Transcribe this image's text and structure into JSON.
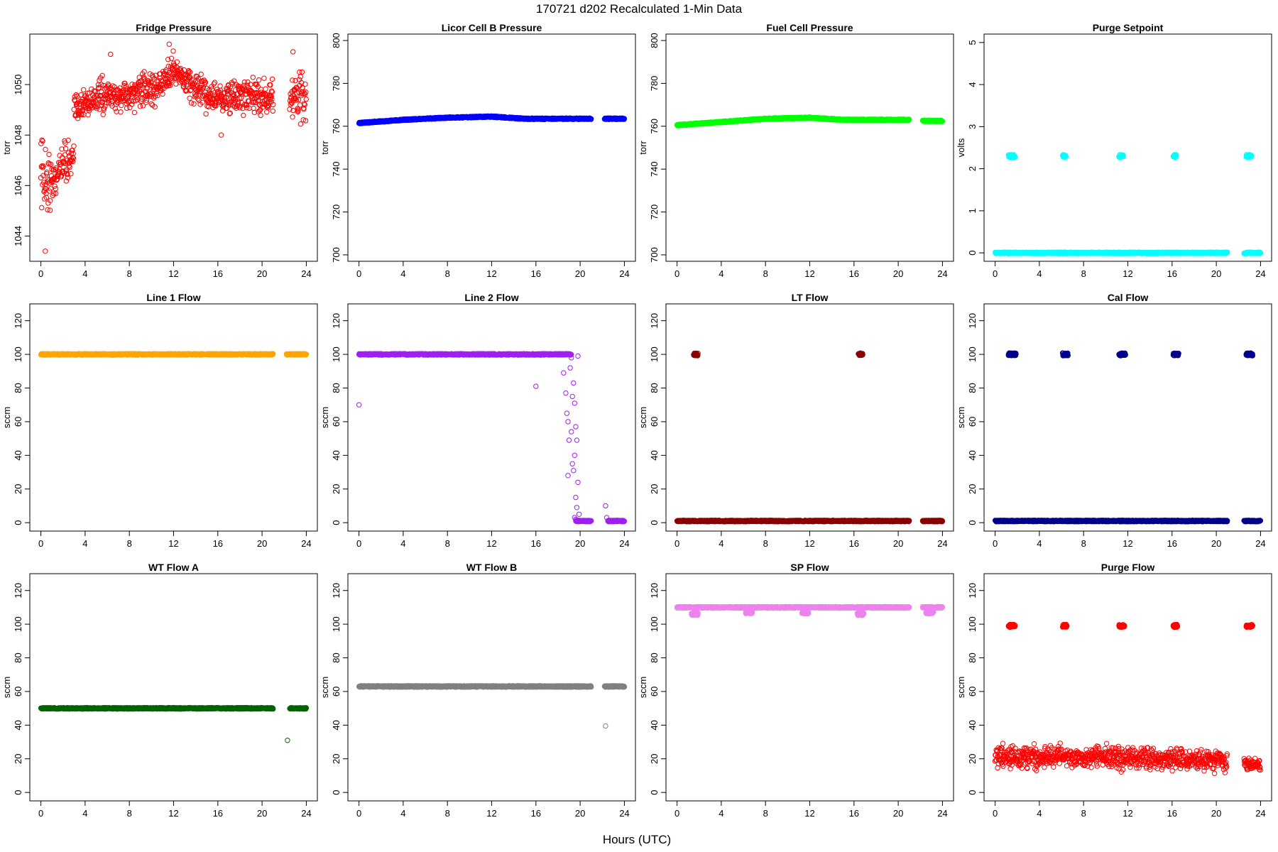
{
  "figure": {
    "title": "170721   d202   Recalculated 1-Min Data",
    "xlabel": "Hours (UTC)"
  },
  "chart_data": [
    {
      "type": "scatter",
      "title": "Fridge Pressure",
      "ylabel": "torr",
      "color": "#ff0000",
      "xlim": [
        -1,
        25
      ],
      "ylim": [
        1043,
        1052
      ],
      "xticks": [
        0,
        4,
        8,
        12,
        16,
        20,
        24
      ],
      "yticks": [
        1044,
        1046,
        1048,
        1050
      ],
      "series": [
        {
          "pattern": "noisy",
          "x_range": [
            0,
            1
          ],
          "knots": [
            [
              0,
              1046.5
            ],
            [
              1,
              1046.0
            ]
          ],
          "noise": 1.2
        },
        {
          "pattern": "noisy",
          "x_range": [
            1,
            3
          ],
          "knots": [
            [
              1,
              1046.0
            ],
            [
              2,
              1047.0
            ],
            [
              3,
              1047.0
            ]
          ],
          "noise": 0.7
        },
        {
          "pattern": "noisy",
          "x_range": [
            3,
            21
          ],
          "knots": [
            [
              3,
              1049.0
            ],
            [
              5,
              1049.5
            ],
            [
              8,
              1049.6
            ],
            [
              11,
              1050.0
            ],
            [
              12,
              1050.6
            ],
            [
              14,
              1049.8
            ],
            [
              16,
              1049.4
            ],
            [
              18,
              1049.5
            ],
            [
              21,
              1049.5
            ]
          ],
          "noise": 0.55
        },
        {
          "pattern": "noisy",
          "x_range": [
            22.5,
            24
          ],
          "knots": [
            [
              22.5,
              1049.6
            ],
            [
              24,
              1049.5
            ]
          ],
          "noise": 0.8
        },
        {
          "pattern": "points",
          "x": [
            0.4,
            0.1,
            11.6,
            11.5,
            6.3,
            16.3,
            22.8
          ],
          "y": [
            1043.4,
            1047.8,
            1051.6,
            1051.0,
            1051.2,
            1048.0,
            1051.3
          ]
        }
      ]
    },
    {
      "type": "scatter",
      "title": "Licor Cell B Pressure",
      "ylabel": "torr",
      "color": "#0000ff",
      "xlim": [
        -1,
        25
      ],
      "ylim": [
        697,
        803
      ],
      "xticks": [
        0,
        4,
        8,
        12,
        16,
        20,
        24
      ],
      "yticks": [
        700,
        720,
        740,
        760,
        780,
        800
      ],
      "series": [
        {
          "pattern": "band",
          "x_range": [
            0,
            21
          ],
          "knots": [
            [
              0,
              761.5
            ],
            [
              4,
              763
            ],
            [
              8,
              764
            ],
            [
              12,
              764.5
            ],
            [
              15,
              763.5
            ],
            [
              21,
              763.5
            ]
          ]
        },
        {
          "pattern": "band",
          "x_range": [
            22.2,
            24
          ],
          "knots": [
            [
              22.2,
              763.5
            ],
            [
              24,
              763.5
            ]
          ]
        }
      ]
    },
    {
      "type": "scatter",
      "title": "Fuel Cell Pressure",
      "ylabel": "torr",
      "color": "#00ff00",
      "xlim": [
        -1,
        25
      ],
      "ylim": [
        697,
        803
      ],
      "xticks": [
        0,
        4,
        8,
        12,
        16,
        20,
        24
      ],
      "yticks": [
        700,
        720,
        740,
        760,
        780,
        800
      ],
      "series": [
        {
          "pattern": "band",
          "x_range": [
            0,
            21
          ],
          "knots": [
            [
              0,
              760.5
            ],
            [
              4,
              762
            ],
            [
              8,
              763.5
            ],
            [
              12,
              764
            ],
            [
              15,
              763
            ],
            [
              21,
              763
            ]
          ]
        },
        {
          "pattern": "band",
          "x_range": [
            22.2,
            24
          ],
          "knots": [
            [
              22.2,
              762.5
            ],
            [
              24,
              762.5
            ]
          ]
        }
      ]
    },
    {
      "type": "scatter",
      "title": "Purge Setpoint",
      "ylabel": "volts",
      "color": "#00ffff",
      "xlim": [
        -1,
        25
      ],
      "ylim": [
        -0.2,
        5.2
      ],
      "xticks": [
        0,
        4,
        8,
        12,
        16,
        20,
        24
      ],
      "yticks": [
        0,
        1,
        2,
        3,
        4,
        5
      ],
      "series": [
        {
          "pattern": "band",
          "x_range": [
            0,
            21
          ],
          "knots": [
            [
              0,
              0
            ],
            [
              21,
              0
            ]
          ]
        },
        {
          "pattern": "band",
          "x_range": [
            22.5,
            24
          ],
          "knots": [
            [
              22.5,
              0
            ],
            [
              24,
              0
            ]
          ]
        },
        {
          "pattern": "cluster",
          "x_range": [
            1.2,
            1.8
          ],
          "y": 2.3
        },
        {
          "pattern": "cluster",
          "x_range": [
            6.1,
            6.4
          ],
          "y": 2.3
        },
        {
          "pattern": "cluster",
          "x_range": [
            11.2,
            11.6
          ],
          "y": 2.3
        },
        {
          "pattern": "cluster",
          "x_range": [
            16.1,
            16.4
          ],
          "y": 2.3
        },
        {
          "pattern": "cluster",
          "x_range": [
            22.7,
            23.2
          ],
          "y": 2.3
        }
      ]
    },
    {
      "type": "scatter",
      "title": "Line 1 Flow",
      "ylabel": "sccm",
      "color": "#ffa500",
      "xlim": [
        -1,
        25
      ],
      "ylim": [
        -5,
        130
      ],
      "xticks": [
        0,
        4,
        8,
        12,
        16,
        20,
        24
      ],
      "yticks": [
        0,
        20,
        40,
        60,
        80,
        100,
        120
      ],
      "series": [
        {
          "pattern": "band",
          "x_range": [
            0,
            21
          ],
          "knots": [
            [
              0,
              100
            ],
            [
              21,
              100
            ]
          ]
        },
        {
          "pattern": "band",
          "x_range": [
            22.2,
            24
          ],
          "knots": [
            [
              22.2,
              100
            ],
            [
              24,
              100
            ]
          ]
        }
      ]
    },
    {
      "type": "scatter",
      "title": "Line 2 Flow",
      "ylabel": "sccm",
      "color": "#a020f0",
      "xlim": [
        -1,
        25
      ],
      "ylim": [
        -5,
        130
      ],
      "xticks": [
        0,
        4,
        8,
        12,
        16,
        20,
        24
      ],
      "yticks": [
        0,
        20,
        40,
        60,
        80,
        100,
        120
      ],
      "series": [
        {
          "pattern": "band",
          "x_range": [
            0,
            19.2
          ],
          "knots": [
            [
              0,
              100
            ],
            [
              19.2,
              100
            ]
          ]
        },
        {
          "pattern": "band",
          "x_range": [
            19.6,
            21
          ],
          "knots": [
            [
              19.6,
              1
            ],
            [
              21,
              1
            ]
          ]
        },
        {
          "pattern": "band",
          "x_range": [
            22.5,
            24
          ],
          "knots": [
            [
              22.5,
              1
            ],
            [
              24,
              1
            ]
          ]
        },
        {
          "pattern": "points",
          "x": [
            0,
            16,
            18.5,
            18.7,
            18.8,
            18.9,
            19.0,
            19.1,
            19.2,
            18.9,
            19.4,
            19.3,
            19.5,
            19.6,
            19.7,
            19.5,
            19.3,
            19.8,
            19.6,
            19.4,
            19.7,
            19.9,
            19.5,
            19.6,
            19.2,
            19.8,
            22.3,
            22.4
          ],
          "y": [
            70,
            81,
            89,
            77,
            65,
            60,
            49,
            92,
            98,
            28,
            83,
            75,
            71,
            57,
            49,
            40,
            35,
            24,
            15,
            31,
            9,
            5,
            3,
            2,
            54,
            99,
            10,
            3
          ]
        }
      ]
    },
    {
      "type": "scatter",
      "title": "LT Flow",
      "ylabel": "sccm",
      "color": "#8b0000",
      "xlim": [
        -1,
        25
      ],
      "ylim": [
        -5,
        130
      ],
      "xticks": [
        0,
        4,
        8,
        12,
        16,
        20,
        24
      ],
      "yticks": [
        0,
        20,
        40,
        60,
        80,
        100,
        120
      ],
      "series": [
        {
          "pattern": "band",
          "x_range": [
            0,
            21
          ],
          "knots": [
            [
              0,
              1
            ],
            [
              21,
              1
            ]
          ]
        },
        {
          "pattern": "band",
          "x_range": [
            22.2,
            24
          ],
          "knots": [
            [
              22.2,
              1
            ],
            [
              24,
              1
            ]
          ]
        },
        {
          "pattern": "cluster",
          "x_range": [
            1.5,
            1.9
          ],
          "y": 100
        },
        {
          "pattern": "cluster",
          "x_range": [
            16.4,
            16.8
          ],
          "y": 100
        }
      ]
    },
    {
      "type": "scatter",
      "title": "Cal Flow",
      "ylabel": "sccm",
      "color": "#00008b",
      "xlim": [
        -1,
        25
      ],
      "ylim": [
        -5,
        130
      ],
      "xticks": [
        0,
        4,
        8,
        12,
        16,
        20,
        24
      ],
      "yticks": [
        0,
        20,
        40,
        60,
        80,
        100,
        120
      ],
      "series": [
        {
          "pattern": "band",
          "x_range": [
            0,
            21
          ],
          "knots": [
            [
              0,
              1
            ],
            [
              21,
              1
            ]
          ]
        },
        {
          "pattern": "band",
          "x_range": [
            22.5,
            24
          ],
          "knots": [
            [
              22.5,
              1
            ],
            [
              24,
              1
            ]
          ]
        },
        {
          "pattern": "cluster",
          "x_range": [
            1.2,
            1.9
          ],
          "y": 100
        },
        {
          "pattern": "cluster",
          "x_range": [
            6.1,
            6.6
          ],
          "y": 100
        },
        {
          "pattern": "cluster",
          "x_range": [
            11.2,
            11.8
          ],
          "y": 100
        },
        {
          "pattern": "cluster",
          "x_range": [
            16.1,
            16.6
          ],
          "y": 100
        },
        {
          "pattern": "cluster",
          "x_range": [
            22.7,
            23.3
          ],
          "y": 100
        }
      ]
    },
    {
      "type": "scatter",
      "title": "WT Flow A",
      "ylabel": "sccm",
      "color": "#006400",
      "xlim": [
        -1,
        25
      ],
      "ylim": [
        -5,
        130
      ],
      "xticks": [
        0,
        4,
        8,
        12,
        16,
        20,
        24
      ],
      "yticks": [
        0,
        20,
        40,
        60,
        80,
        100,
        120
      ],
      "series": [
        {
          "pattern": "band",
          "x_range": [
            0,
            21
          ],
          "knots": [
            [
              0,
              50
            ],
            [
              21,
              50
            ]
          ]
        },
        {
          "pattern": "band",
          "x_range": [
            22.5,
            24
          ],
          "knots": [
            [
              22.5,
              50
            ],
            [
              24,
              50
            ]
          ]
        },
        {
          "pattern": "points",
          "x": [
            22.3
          ],
          "y": [
            31
          ]
        }
      ]
    },
    {
      "type": "scatter",
      "title": "WT Flow B",
      "ylabel": "sccm",
      "color": "#808080",
      "xlim": [
        -1,
        25
      ],
      "ylim": [
        -5,
        130
      ],
      "xticks": [
        0,
        4,
        8,
        12,
        16,
        20,
        24
      ],
      "yticks": [
        0,
        20,
        40,
        60,
        80,
        100,
        120
      ],
      "series": [
        {
          "pattern": "band",
          "x_range": [
            0,
            21
          ],
          "knots": [
            [
              0,
              63
            ],
            [
              21,
              63
            ]
          ]
        },
        {
          "pattern": "band",
          "x_range": [
            22.2,
            24
          ],
          "knots": [
            [
              22.2,
              63
            ],
            [
              24,
              63
            ]
          ]
        },
        {
          "pattern": "points",
          "x": [
            22.3
          ],
          "y": [
            39.5
          ]
        }
      ]
    },
    {
      "type": "scatter",
      "title": "SP Flow",
      "ylabel": "sccm",
      "color": "#ee82ee",
      "xlim": [
        -1,
        25
      ],
      "ylim": [
        -5,
        130
      ],
      "xticks": [
        0,
        4,
        8,
        12,
        16,
        20,
        24
      ],
      "yticks": [
        0,
        20,
        40,
        60,
        80,
        100,
        120
      ],
      "series": [
        {
          "pattern": "band",
          "x_range": [
            0,
            21
          ],
          "knots": [
            [
              0,
              110
            ],
            [
              21,
              110
            ]
          ]
        },
        {
          "pattern": "band",
          "x_range": [
            22.2,
            24
          ],
          "knots": [
            [
              22.2,
              110
            ],
            [
              24,
              110
            ]
          ]
        },
        {
          "pattern": "cluster",
          "x_range": [
            1.3,
            1.9
          ],
          "y": 106
        },
        {
          "pattern": "cluster",
          "x_range": [
            6.2,
            6.8
          ],
          "y": 107
        },
        {
          "pattern": "cluster",
          "x_range": [
            11.3,
            11.9
          ],
          "y": 107
        },
        {
          "pattern": "cluster",
          "x_range": [
            16.3,
            16.9
          ],
          "y": 106
        },
        {
          "pattern": "cluster",
          "x_range": [
            22.5,
            23.2
          ],
          "y": 107
        }
      ]
    },
    {
      "type": "scatter",
      "title": "Purge Flow",
      "ylabel": "sccm",
      "color": "#ff0000",
      "xlim": [
        -1,
        25
      ],
      "ylim": [
        -5,
        130
      ],
      "xticks": [
        0,
        4,
        8,
        12,
        16,
        20,
        24
      ],
      "yticks": [
        0,
        20,
        40,
        60,
        80,
        100,
        120
      ],
      "series": [
        {
          "pattern": "noisy",
          "x_range": [
            0,
            21
          ],
          "knots": [
            [
              0,
              21
            ],
            [
              10,
              21
            ],
            [
              20,
              19
            ],
            [
              21,
              17
            ]
          ],
          "noise": 5.5
        },
        {
          "pattern": "noisy",
          "x_range": [
            22.5,
            24
          ],
          "knots": [
            [
              22.5,
              17
            ],
            [
              24,
              16
            ]
          ],
          "noise": 3.5
        },
        {
          "pattern": "cluster",
          "x_range": [
            1.2,
            1.8
          ],
          "y": 99
        },
        {
          "pattern": "cluster",
          "x_range": [
            6.1,
            6.5
          ],
          "y": 99
        },
        {
          "pattern": "cluster",
          "x_range": [
            11.2,
            11.7
          ],
          "y": 99
        },
        {
          "pattern": "cluster",
          "x_range": [
            16.1,
            16.5
          ],
          "y": 99
        },
        {
          "pattern": "cluster",
          "x_range": [
            22.7,
            23.3
          ],
          "y": 99
        }
      ]
    }
  ]
}
